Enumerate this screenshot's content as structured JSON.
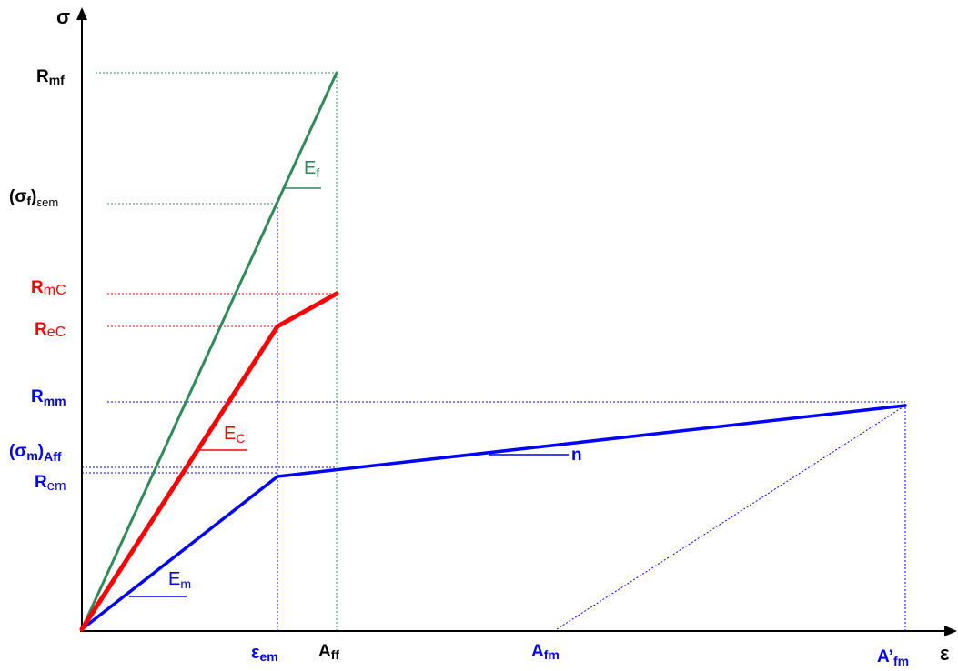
{
  "axes": {
    "y_label": "σ",
    "x_label": "ε"
  },
  "colors": {
    "fiber": "#2e8b57",
    "composite": "#ff0000",
    "matrix": "#0000ff",
    "axis": "#000000"
  },
  "y_labels": {
    "rmf": {
      "main": "R",
      "sub": "mf"
    },
    "sigma_f": {
      "main": "(σ",
      "sub1": "f",
      "main2": ")",
      "sub2": "εem"
    },
    "rmc": {
      "main": "R",
      "sub": "mC"
    },
    "rec": {
      "main": "R",
      "sub": "eC"
    },
    "rmm": {
      "main": "R",
      "sub": "mm"
    },
    "sigma_m": {
      "main": "(σ",
      "sub1": "m",
      "main2": ")",
      "sub2": "Aff"
    },
    "rem": {
      "main": "R",
      "sub": "em"
    }
  },
  "x_labels": {
    "eem": {
      "main": "ε",
      "sub": "em"
    },
    "aff": {
      "main": "A",
      "sub": "ff"
    },
    "afm": {
      "main": "A",
      "sub": "fm"
    },
    "afm_prime": {
      "main": "A’",
      "sub": "fm"
    }
  },
  "curve_labels": {
    "ef": {
      "main": "E",
      "sub": "f"
    },
    "ec": {
      "main": "E",
      "sub": "C"
    },
    "em": {
      "main": "E",
      "sub": "m"
    },
    "n": "n"
  }
}
